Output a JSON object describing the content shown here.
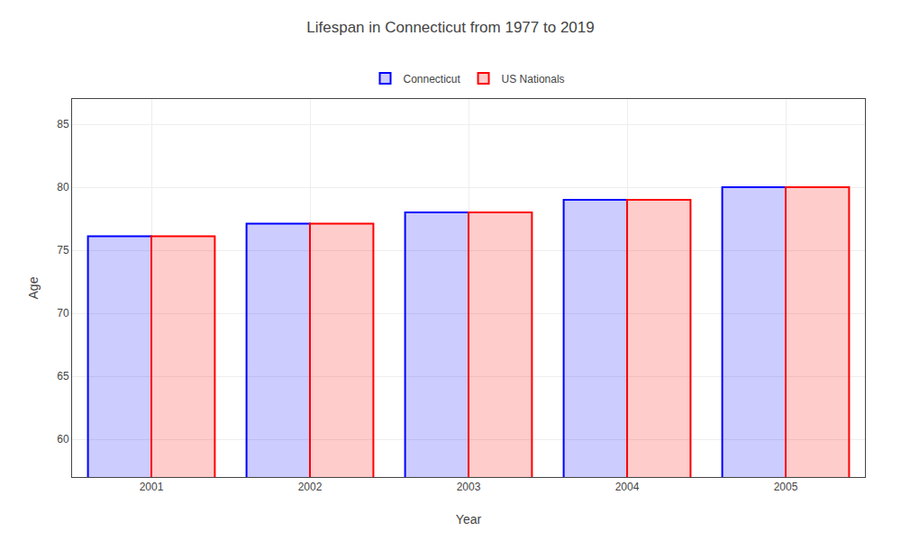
{
  "chart_data": {
    "type": "bar",
    "title": "Lifespan in Connecticut from 1977 to 2019",
    "xlabel": "Year",
    "ylabel": "Age",
    "categories": [
      2001,
      2002,
      2003,
      2004,
      2005
    ],
    "series": [
      {
        "name": "Connecticut",
        "color": "#0000ff",
        "values": [
          76.1,
          77.1,
          78.0,
          79.0,
          80.0
        ]
      },
      {
        "name": "US Nationals",
        "color": "#ff0000",
        "values": [
          76.1,
          77.1,
          78.0,
          79.0,
          80.0
        ]
      }
    ],
    "ylim": [
      57,
      87
    ],
    "yticks": [
      60,
      65,
      70,
      75,
      80,
      85
    ],
    "grid": true,
    "legend": "top"
  }
}
